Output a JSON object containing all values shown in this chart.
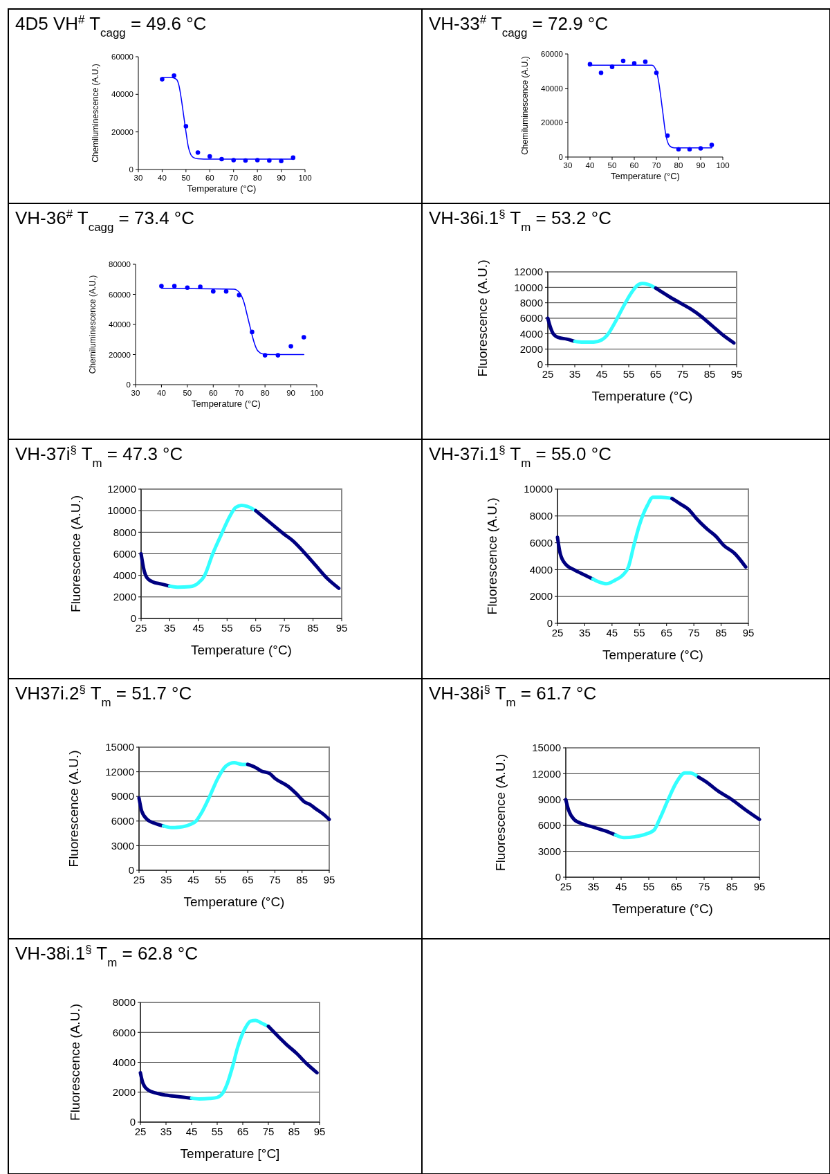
{
  "chart_data": [
    {
      "type": "scatter",
      "title": "4D5 VH$^{#}$  T$_{cagg}$ = 49.6 °C",
      "xlabel": "Temperature (°C)",
      "ylabel": "Chemiluminescence (A.U.)",
      "xlim": [
        30,
        100
      ],
      "xticks": [
        30,
        40,
        50,
        60,
        70,
        80,
        90,
        100
      ],
      "ylim": [
        0,
        60000
      ],
      "yticks": [
        0,
        20000,
        40000,
        60000
      ],
      "grid": false,
      "series": [
        {
          "type": "scatter",
          "marker": "circle",
          "color": "#0000ff",
          "x": [
            40,
            45,
            50,
            55,
            60,
            65,
            70,
            75,
            80,
            85,
            90,
            95
          ],
          "values": [
            48000,
            50000,
            23000,
            9000,
            7000,
            5500,
            5000,
            4800,
            5000,
            4800,
            4500,
            6300
          ]
        },
        {
          "type": "line",
          "color": "#0000ff",
          "x": [
            40,
            44,
            46,
            47,
            48,
            49,
            50,
            51,
            52,
            53,
            55,
            60,
            95
          ],
          "values": [
            49000,
            49000,
            48000,
            45000,
            38000,
            29000,
            20000,
            12000,
            8000,
            6500,
            5700,
            5500,
            5500
          ]
        }
      ]
    },
    {
      "type": "scatter",
      "title": "VH-33$^{#}$  T$_{cagg}$ = 72.9 °C",
      "xlabel": "Temperature (°C)",
      "ylabel": "Chemiluminescence (A.U.)",
      "xlim": [
        30,
        100
      ],
      "xticks": [
        30,
        40,
        50,
        60,
        70,
        80,
        90,
        100
      ],
      "ylim": [
        0,
        60000
      ],
      "yticks": [
        0,
        20000,
        40000,
        60000
      ],
      "grid": false,
      "series": [
        {
          "type": "scatter",
          "marker": "circle",
          "color": "#0000ff",
          "x": [
            40,
            45,
            50,
            55,
            60,
            65,
            70,
            75,
            80,
            85,
            90,
            95
          ],
          "values": [
            54000,
            49000,
            52500,
            56000,
            54500,
            55500,
            49000,
            12500,
            4500,
            4500,
            5000,
            7000
          ]
        },
        {
          "type": "line",
          "color": "#0000ff",
          "x": [
            40,
            68,
            70,
            71,
            72,
            73,
            74,
            75,
            76,
            78,
            95
          ],
          "values": [
            53500,
            53500,
            50000,
            44000,
            35000,
            25000,
            15000,
            9000,
            6500,
            5300,
            5300
          ]
        }
      ]
    },
    {
      "type": "scatter",
      "title": "VH-36$^{#}$   T$_{cagg}$ = 73.4 °C",
      "xlabel": "Temperature (°C)",
      "ylabel": "Chemiluminescence (A.U.)",
      "xlim": [
        30,
        100
      ],
      "xticks": [
        30,
        40,
        50,
        60,
        70,
        80,
        90,
        100
      ],
      "ylim": [
        0,
        80000
      ],
      "yticks": [
        0,
        20000,
        40000,
        60000,
        80000
      ],
      "grid": false,
      "series": [
        {
          "type": "scatter",
          "marker": "circle",
          "color": "#0000ff",
          "x": [
            40,
            45,
            50,
            55,
            60,
            65,
            70,
            75,
            80,
            85,
            90,
            95
          ],
          "values": [
            65500,
            65500,
            64500,
            65000,
            62000,
            62000,
            59500,
            35000,
            19500,
            19500,
            25500,
            31500
          ]
        },
        {
          "type": "line",
          "color": "#0000ff",
          "x": [
            40,
            68,
            70,
            72,
            73,
            74,
            75,
            76,
            77,
            79,
            82,
            95
          ],
          "values": [
            64000,
            63500,
            61500,
            54000,
            47000,
            40000,
            33000,
            27000,
            23000,
            20500,
            20000,
            20000
          ]
        }
      ]
    },
    {
      "type": "line",
      "title": "VH-36i.1$^{§}$  T$_{m}$ = 53.2 °C",
      "xlabel": "Temperature (°C)",
      "ylabel": "Fluorescence (A.U.)",
      "xlim": [
        25,
        95
      ],
      "xticks": [
        25,
        35,
        45,
        55,
        65,
        75,
        85,
        95
      ],
      "ylim": [
        0,
        12000
      ],
      "yticks": [
        0,
        2000,
        4000,
        6000,
        8000,
        10000,
        12000
      ],
      "grid": "y",
      "series": [
        {
          "color": "#000080",
          "x": [
            25,
            26,
            27,
            29,
            32,
            35
          ],
          "values": [
            6000,
            4800,
            4000,
            3500,
            3300,
            3000
          ]
        },
        {
          "color": "#33ffff",
          "x": [
            35,
            38,
            42,
            45,
            47,
            50,
            53,
            56,
            58,
            60,
            62,
            65
          ],
          "values": [
            3000,
            2900,
            2900,
            3200,
            3800,
            5500,
            7500,
            9300,
            10200,
            10500,
            10400,
            9900
          ]
        },
        {
          "color": "#000080",
          "x": [
            65,
            70,
            75,
            78,
            82,
            86,
            90,
            94
          ],
          "values": [
            9900,
            8800,
            7800,
            7200,
            6200,
            5000,
            3800,
            2800
          ]
        }
      ]
    },
    {
      "type": "line",
      "title": "VH-37i$^{§}$ T$_{m}$ = 47.3 °C",
      "xlabel": "Temperature (°C)",
      "ylabel": "Fluorescence (A.U.)",
      "xlim": [
        25,
        95
      ],
      "xticks": [
        25,
        35,
        45,
        55,
        65,
        75,
        85,
        95
      ],
      "ylim": [
        0,
        12000
      ],
      "yticks": [
        0,
        2000,
        4000,
        6000,
        8000,
        10000,
        12000
      ],
      "grid": "y",
      "series": [
        {
          "color": "#000080",
          "x": [
            25,
            26,
            27,
            29,
            32,
            35
          ],
          "values": [
            6000,
            4500,
            3800,
            3400,
            3200,
            3000
          ]
        },
        {
          "color": "#33ffff",
          "x": [
            35,
            38,
            42,
            45,
            47,
            50,
            53,
            56,
            58,
            60,
            62,
            65
          ],
          "values": [
            3000,
            2900,
            2950,
            3300,
            3900,
            6000,
            7800,
            9500,
            10300,
            10500,
            10400,
            10000
          ]
        },
        {
          "color": "#000080",
          "x": [
            65,
            70,
            75,
            78,
            82,
            86,
            90,
            94
          ],
          "values": [
            10000,
            8900,
            7800,
            7200,
            6100,
            4900,
            3700,
            2800
          ]
        }
      ]
    },
    {
      "type": "line",
      "title": "VH-37i.1$^{§}$  T$_{m}$ = 55.0 °C",
      "xlabel": "Temperature (°C)",
      "ylabel": "Fluorescence (A.U.)",
      "xlim": [
        25,
        95
      ],
      "xticks": [
        25,
        35,
        45,
        55,
        65,
        75,
        85,
        95
      ],
      "ylim": [
        0,
        10000
      ],
      "yticks": [
        0,
        2000,
        4000,
        6000,
        8000,
        10000
      ],
      "grid": "y",
      "series": [
        {
          "color": "#000080",
          "x": [
            25,
            26,
            28,
            31,
            35,
            38
          ],
          "values": [
            6400,
            5200,
            4400,
            4000,
            3600,
            3300
          ]
        },
        {
          "color": "#33ffff",
          "x": [
            38,
            40,
            43,
            46,
            49,
            51,
            53,
            55,
            58,
            60,
            63,
            67
          ],
          "values": [
            3300,
            3100,
            2950,
            3200,
            3600,
            4200,
            5800,
            7300,
            8800,
            9400,
            9400,
            9300
          ]
        },
        {
          "color": "#000080",
          "x": [
            67,
            70,
            73,
            76,
            80,
            83,
            86,
            90,
            94
          ],
          "values": [
            9300,
            8900,
            8500,
            7800,
            7000,
            6500,
            5800,
            5200,
            4200
          ]
        }
      ]
    },
    {
      "type": "line",
      "title": "VH37i.2$^{§}$  T$_{m}$ = 51.7 °C",
      "xlabel": "Temperature (°C)",
      "ylabel": "Fluorescence (A.U.)",
      "xlim": [
        25,
        95
      ],
      "xticks": [
        25,
        35,
        45,
        55,
        65,
        75,
        85,
        95
      ],
      "ylim": [
        0,
        15000
      ],
      "yticks": [
        0,
        3000,
        6000,
        9000,
        12000,
        15000
      ],
      "grid": "y",
      "series": [
        {
          "color": "#000080",
          "x": [
            25,
            26,
            28,
            31,
            34
          ],
          "values": [
            8800,
            7200,
            6200,
            5700,
            5400
          ]
        },
        {
          "color": "#33ffff",
          "x": [
            34,
            37,
            41,
            44,
            46,
            48,
            51,
            54,
            57,
            60,
            63,
            65
          ],
          "values": [
            5400,
            5200,
            5300,
            5600,
            6000,
            7000,
            9000,
            11200,
            12700,
            13100,
            12900,
            12900
          ]
        },
        {
          "color": "#000080",
          "x": [
            65,
            68,
            70,
            73,
            75,
            80,
            83,
            86,
            88,
            90,
            93,
            95
          ],
          "values": [
            12900,
            12500,
            12100,
            11800,
            11200,
            10200,
            9300,
            8300,
            8000,
            7500,
            6800,
            6200
          ]
        }
      ]
    },
    {
      "type": "line",
      "title": "VH-38i$^{§}$  T$_{m}$ = 61.7 °C",
      "xlabel": "Temperature (°C)",
      "ylabel": "Fluorescence (A.U.)",
      "xlim": [
        25,
        95
      ],
      "xticks": [
        25,
        35,
        45,
        55,
        65,
        75,
        85,
        95
      ],
      "ylim": [
        0,
        15000
      ],
      "yticks": [
        0,
        3000,
        6000,
        9000,
        12000,
        15000
      ],
      "grid": "y",
      "series": [
        {
          "color": "#000080",
          "x": [
            25,
            26,
            28,
            31,
            35,
            39,
            43
          ],
          "values": [
            9000,
            7800,
            6700,
            6200,
            5800,
            5400,
            4900
          ]
        },
        {
          "color": "#33ffff",
          "x": [
            43,
            46,
            50,
            54,
            57,
            59,
            62,
            65,
            68,
            70,
            73
          ],
          "values": [
            4900,
            4600,
            4700,
            5000,
            5500,
            6800,
            9000,
            11000,
            12100,
            12100,
            11600
          ]
        },
        {
          "color": "#000080",
          "x": [
            73,
            76,
            80,
            85,
            90,
            95
          ],
          "values": [
            11600,
            11000,
            10000,
            9000,
            7800,
            6700
          ]
        }
      ]
    },
    {
      "type": "line",
      "title": "VH-38i.1$^{§}$  T$_{m}$ = 62.8 °C",
      "xlabel": "Temperature [°C]",
      "ylabel": "Fluorescence (A.U.)",
      "xlim": [
        25,
        95
      ],
      "xticks": [
        25,
        35,
        45,
        55,
        65,
        75,
        85,
        95
      ],
      "ylim": [
        0,
        8000
      ],
      "yticks": [
        0,
        2000,
        4000,
        6000,
        8000
      ],
      "grid": "y",
      "series": [
        {
          "color": "#000080",
          "x": [
            25,
            26,
            28,
            31,
            35,
            40,
            45
          ],
          "values": [
            3300,
            2600,
            2150,
            1950,
            1800,
            1700,
            1600
          ]
        },
        {
          "color": "#33ffff",
          "x": [
            45,
            48,
            52,
            55,
            57,
            59,
            61,
            63,
            66,
            68,
            70,
            72,
            75
          ],
          "values": [
            1600,
            1550,
            1580,
            1650,
            1900,
            2600,
            3700,
            5000,
            6300,
            6750,
            6800,
            6650,
            6400
          ]
        },
        {
          "color": "#000080",
          "x": [
            75,
            79,
            82,
            86,
            90,
            94
          ],
          "values": [
            6400,
            5700,
            5200,
            4600,
            3900,
            3300
          ]
        }
      ]
    }
  ]
}
